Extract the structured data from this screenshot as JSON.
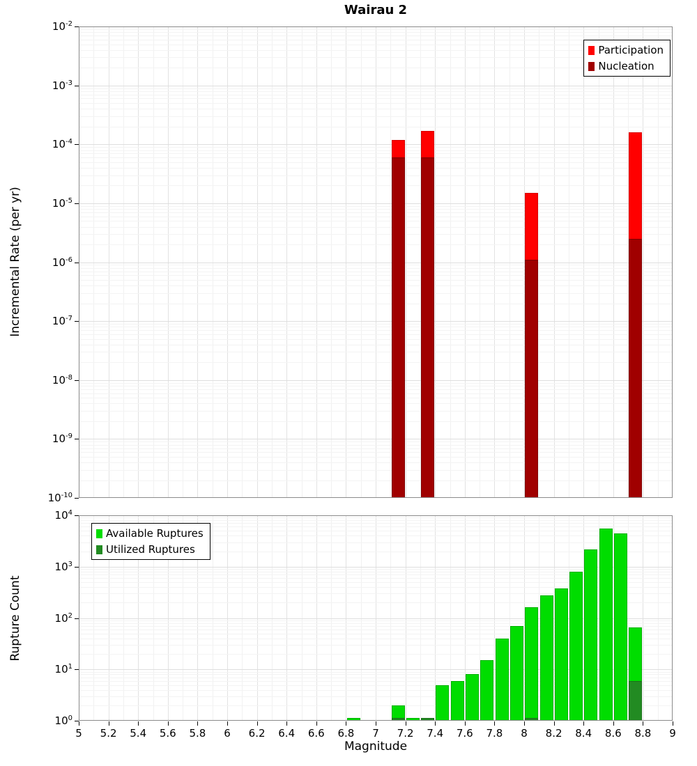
{
  "title": "Wairau 2",
  "axes": {
    "x_label": "Magnitude",
    "x_tick_labels": [
      "5",
      "5.2",
      "5.4",
      "5.6",
      "5.8",
      "6",
      "6.2",
      "6.4",
      "6.6",
      "6.8",
      "7",
      "7.2",
      "7.4",
      "7.6",
      "7.8",
      "8",
      "8.2",
      "8.4",
      "8.6",
      "8.8",
      "9"
    ]
  },
  "chart_data": [
    {
      "type": "bar",
      "name": "incremental-rate-plot",
      "ylabel": "Incremental Rate (per yr)",
      "yscale": "log",
      "ylim": [
        1e-10,
        0.01
      ],
      "xlim": [
        5,
        9
      ],
      "y_tick_exponents": [
        -2,
        -3,
        -4,
        -5,
        -6,
        -7,
        -8,
        -9,
        -10
      ],
      "grid": true,
      "legend_position": "top-right",
      "bin_width": 0.1,
      "series": [
        {
          "name": "Participation",
          "color": "#ff0000",
          "edge": "#d80000",
          "points": [
            [
              7.15,
              0.00012
            ],
            [
              7.35,
              0.00017
            ],
            [
              8.05,
              1.5e-05
            ],
            [
              8.75,
              0.00016
            ]
          ]
        },
        {
          "name": "Nucleation",
          "color": "#a00000",
          "edge": "#800000",
          "points": [
            [
              7.15,
              6e-05
            ],
            [
              7.35,
              6e-05
            ],
            [
              8.05,
              1.1e-06
            ],
            [
              8.75,
              2.5e-06
            ]
          ]
        }
      ]
    },
    {
      "type": "bar",
      "name": "rupture-count-plot",
      "ylabel": "Rupture Count",
      "yscale": "log",
      "ylim": [
        1,
        10000.0
      ],
      "xlim": [
        5,
        9
      ],
      "y_tick_exponents": [
        4,
        3,
        2,
        1,
        0
      ],
      "grid": true,
      "legend_position": "top-left",
      "bin_width": 0.1,
      "series": [
        {
          "name": "Available Ruptures",
          "color": "#00dd00",
          "edge": "#00b000",
          "points": [
            [
              6.85,
              1
            ],
            [
              7.15,
              2
            ],
            [
              7.25,
              1
            ],
            [
              7.35,
              1
            ],
            [
              7.45,
              5
            ],
            [
              7.55,
              6
            ],
            [
              7.65,
              8
            ],
            [
              7.75,
              15
            ],
            [
              7.85,
              40
            ],
            [
              7.95,
              70
            ],
            [
              8.05,
              160
            ],
            [
              8.15,
              280
            ],
            [
              8.25,
              380
            ],
            [
              8.35,
              800
            ],
            [
              8.45,
              2200
            ],
            [
              8.55,
              5500
            ],
            [
              8.65,
              4500
            ],
            [
              8.75,
              65
            ]
          ]
        },
        {
          "name": "Utilized Ruptures",
          "color": "#228b22",
          "edge": "#1a701a",
          "points": [
            [
              7.15,
              1
            ],
            [
              7.35,
              1
            ],
            [
              8.05,
              1
            ],
            [
              8.75,
              6
            ]
          ]
        }
      ]
    }
  ]
}
